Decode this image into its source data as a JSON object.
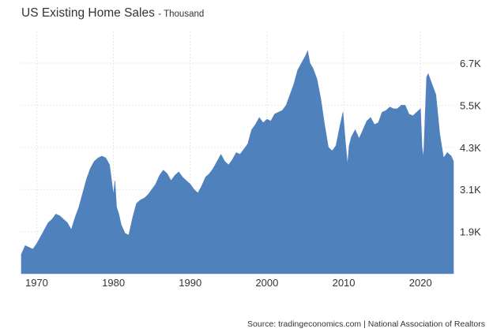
{
  "chart_data": {
    "type": "area",
    "title": "US Existing Home Sales",
    "subtitle": "- Thousand",
    "xlabel": "",
    "ylabel": "",
    "xlim": [
      1968.0,
      2024.3
    ],
    "ylim": [
      700,
      7600
    ],
    "y_ticks": [
      1900,
      3100,
      4300,
      5500,
      6700
    ],
    "y_tick_labels": [
      "1.9K",
      "3.1K",
      "4.3K",
      "5.5K",
      "6.7K"
    ],
    "x_ticks": [
      1970,
      1980,
      1990,
      2000,
      2010,
      2020
    ],
    "x_tick_labels": [
      "1970",
      "1980",
      "1990",
      "2000",
      "2010",
      "2020"
    ],
    "y_axis_position": "right",
    "grid": true,
    "legend": "none",
    "fill_color": "#4f81bd",
    "series": [
      {
        "x": [
          1968.0,
          1968.5,
          1969.0,
          1969.5,
          1970.0,
          1970.5,
          1971.0,
          1971.5,
          1972.0,
          1972.5,
          1973.0,
          1973.5,
          1974.0,
          1974.5,
          1975.0,
          1975.5,
          1976.0,
          1976.5,
          1977.0,
          1977.5,
          1978.0,
          1978.5,
          1979.0,
          1979.5,
          1980.0,
          1980.2,
          1980.4,
          1980.7,
          1981.0,
          1981.5,
          1982.0,
          1982.5,
          1983.0,
          1983.5,
          1984.0,
          1984.5,
          1985.0,
          1985.5,
          1986.0,
          1986.5,
          1987.0,
          1987.5,
          1988.0,
          1988.5,
          1989.0,
          1989.5,
          1990.0,
          1990.5,
          1991.0,
          1991.5,
          1992.0,
          1992.5,
          1993.0,
          1993.5,
          1994.0,
          1994.5,
          1995.0,
          1995.5,
          1996.0,
          1996.5,
          1997.0,
          1997.5,
          1998.0,
          1998.5,
          1999.0,
          1999.5,
          2000.0,
          2000.5,
          2001.0,
          2001.5,
          2002.0,
          2002.5,
          2003.0,
          2003.5,
          2004.0,
          2004.5,
          2005.0,
          2005.3,
          2005.6,
          2006.0,
          2006.5,
          2007.0,
          2007.5,
          2008.0,
          2008.5,
          2009.0,
          2009.5,
          2009.9,
          2010.2,
          2010.5,
          2010.7,
          2011.0,
          2011.5,
          2012.0,
          2012.5,
          2013.0,
          2013.5,
          2014.0,
          2014.5,
          2015.0,
          2015.5,
          2016.0,
          2016.5,
          2017.0,
          2017.5,
          2018.0,
          2018.5,
          2019.0,
          2019.5,
          2020.0,
          2020.2,
          2020.4,
          2020.6,
          2020.8,
          2021.0,
          2021.5,
          2022.0,
          2022.5,
          2023.0,
          2023.5,
          2024.0,
          2024.3
        ],
        "values": [
          1250,
          1500,
          1450,
          1400,
          1550,
          1750,
          1950,
          2150,
          2250,
          2400,
          2350,
          2250,
          2150,
          1950,
          2300,
          2600,
          3000,
          3400,
          3700,
          3900,
          4000,
          4050,
          4000,
          3800,
          2950,
          3350,
          2600,
          2400,
          2100,
          1850,
          1800,
          2300,
          2700,
          2800,
          2850,
          2950,
          3100,
          3250,
          3500,
          3650,
          3550,
          3350,
          3500,
          3600,
          3450,
          3350,
          3250,
          3100,
          3000,
          3200,
          3450,
          3550,
          3700,
          3900,
          4100,
          3900,
          3800,
          3950,
          4150,
          4100,
          4250,
          4400,
          4800,
          4950,
          5150,
          5000,
          5100,
          5050,
          5250,
          5300,
          5350,
          5500,
          5800,
          6100,
          6500,
          6700,
          6900,
          7050,
          6700,
          6550,
          6250,
          5700,
          4950,
          4300,
          4200,
          4350,
          4900,
          5300,
          4500,
          3800,
          4350,
          4600,
          4800,
          4550,
          4800,
          5050,
          5150,
          4950,
          5000,
          5300,
          5350,
          5450,
          5400,
          5400,
          5500,
          5500,
          5250,
          5200,
          5300,
          5400,
          4300,
          4000,
          5200,
          6300,
          6400,
          6100,
          5800,
          4700,
          4000,
          4150,
          4050,
          3900
        ]
      }
    ],
    "source": "Source: tradingeconomics.com | National Association of Realtors"
  }
}
